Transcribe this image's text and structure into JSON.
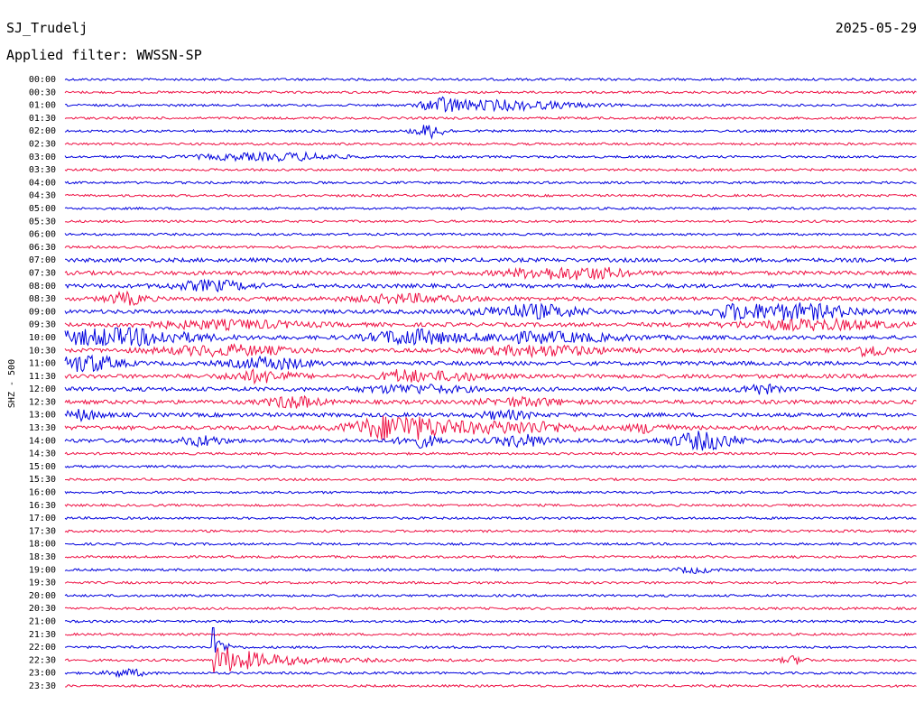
{
  "header": {
    "station": "SJ_Trudelj",
    "date": "2025-05-29",
    "filter": "Applied filter: WWSSN-SP"
  },
  "axis_label": "SHZ - 500",
  "trace_colors": [
    "#0000dd",
    "#ee1144"
  ],
  "times": [
    "00:00",
    "00:30",
    "01:00",
    "01:30",
    "02:00",
    "02:30",
    "03:00",
    "03:30",
    "04:00",
    "04:30",
    "05:00",
    "05:30",
    "06:00",
    "06:30",
    "07:00",
    "07:30",
    "08:00",
    "08:30",
    "09:00",
    "09:30",
    "10:00",
    "10:30",
    "11:00",
    "11:30",
    "12:00",
    "12:30",
    "13:00",
    "13:30",
    "14:00",
    "14:30",
    "15:00",
    "15:30",
    "16:00",
    "16:30",
    "17:00",
    "17:30",
    "18:00",
    "18:30",
    "19:00",
    "19:30",
    "20:00",
    "20:30",
    "21:00",
    "21:30",
    "22:00",
    "22:30",
    "23:00",
    "23:30"
  ]
}
